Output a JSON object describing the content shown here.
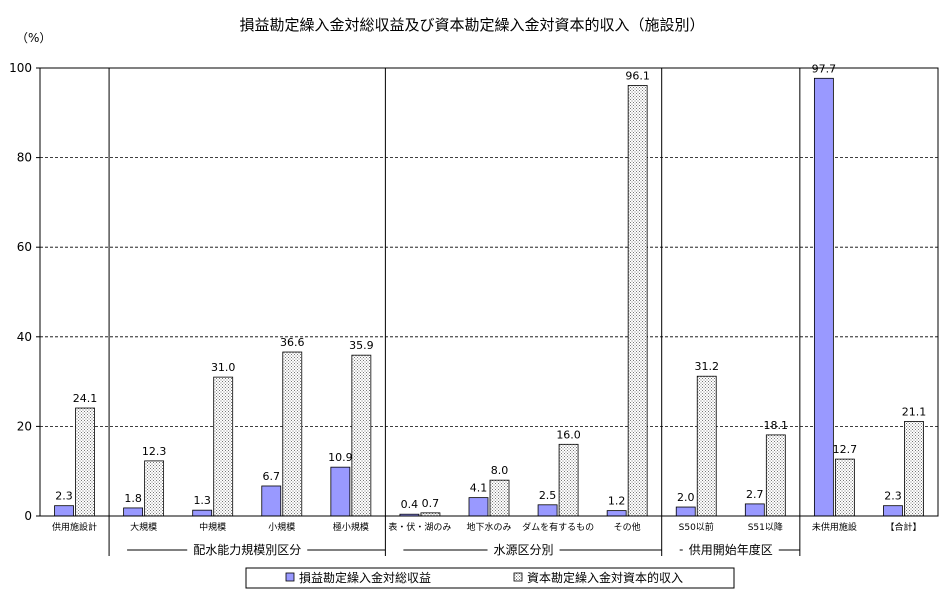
{
  "chart_data": {
    "type": "bar",
    "title": "損益勘定繰入金対総収益及び資本勘定繰入金対資本的収入（施設別）",
    "unit": "（%）",
    "ylim": [
      0,
      100
    ],
    "yticks": [
      0,
      20,
      40,
      60,
      80,
      100
    ],
    "grid": true,
    "legend_position": "bottom",
    "categories": [
      "供用施設計",
      "大規模",
      "中規模",
      "小規模",
      "極小規模",
      "表・伏・湖のみ",
      "地下水のみ",
      "ダムを有するもの",
      "その他",
      "S50以前",
      "S51以降",
      "未供用施設",
      "【合計】"
    ],
    "series": [
      {
        "name": "損益勘定繰入金対総収益",
        "color": "#9999ff",
        "values": [
          2.3,
          1.8,
          1.3,
          6.7,
          10.9,
          0.4,
          4.1,
          2.5,
          1.2,
          2.0,
          2.7,
          97.7,
          2.3
        ]
      },
      {
        "name": "資本勘定繰入金対資本的収入",
        "color": "#ffffff",
        "values": [
          24.1,
          12.3,
          31.0,
          36.6,
          35.9,
          0.7,
          8.0,
          16.0,
          96.1,
          31.2,
          18.1,
          12.7,
          21.1
        ]
      }
    ],
    "groups": [
      {
        "label": "配水能力規模別区分",
        "start": 1,
        "end": 4
      },
      {
        "label": "水源区分別",
        "start": 5,
        "end": 8
      },
      {
        "label": "供用開始年度区",
        "start": 9,
        "end": 10
      }
    ]
  }
}
